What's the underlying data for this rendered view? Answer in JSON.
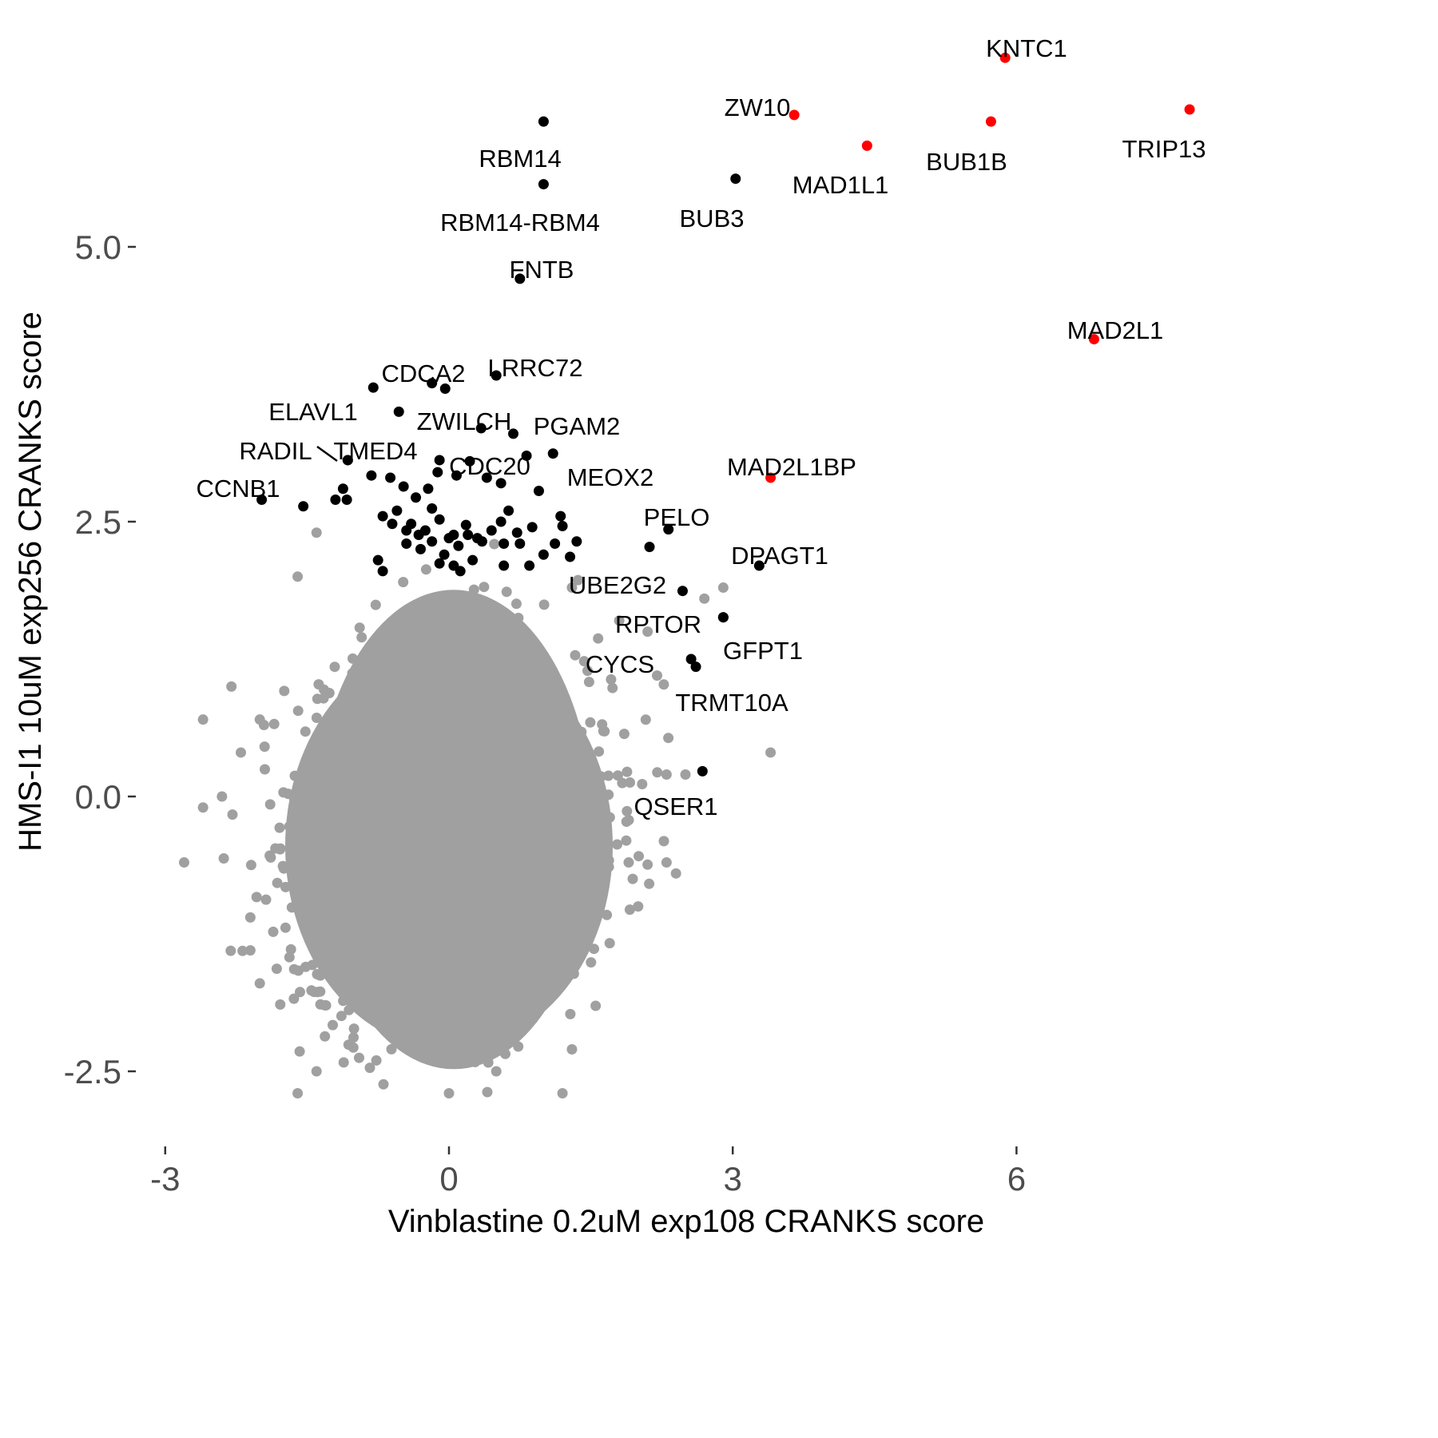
{
  "chart_data": {
    "type": "scatter",
    "title": "",
    "xlabel": "Vinblastine 0.2uM exp108 CRANKS score",
    "ylabel": "HMS-I1 10uM exp256 CRANKS score",
    "xlim": [
      -3.3,
      8.0
    ],
    "ylim": [
      -3.1,
      7.05
    ],
    "x_ticks": [
      -3,
      0,
      3,
      6
    ],
    "x_tick_labels": [
      "-3",
      "0",
      "3",
      "6"
    ],
    "y_ticks": [
      -2.5,
      0.0,
      2.5,
      5.0
    ],
    "y_tick_labels": [
      "-2.5",
      "0.0",
      "2.5",
      "5.0"
    ],
    "grid": false,
    "legend": "none",
    "colors": {
      "background": "#ffffff",
      "background_genes": "#a0a0a0",
      "highlight_black": "#000000",
      "highlight_red": "#ff0000",
      "tick_text": "#4d4d4d"
    },
    "background_cloud": {
      "description_type": "dense gray point cloud (thousands of genes)",
      "x_range": [
        -2.8,
        3.4
      ],
      "y_range": [
        -2.7,
        2.4
      ],
      "color": "#a0a0a0",
      "outliers": [
        [
          -2.8,
          -0.6
        ],
        [
          -2.6,
          0.7
        ],
        [
          -2.6,
          -0.1
        ],
        [
          -2.4,
          0.0
        ],
        [
          -2.3,
          1.0
        ],
        [
          -2.2,
          0.4
        ],
        [
          -2.1,
          -1.1
        ],
        [
          -2.1,
          -1.4
        ],
        [
          -2.0,
          -1.7
        ],
        [
          -2.0,
          0.7
        ],
        [
          -1.6,
          -2.7
        ],
        [
          -1.4,
          -2.5
        ],
        [
          -1.3,
          -1.9
        ],
        [
          -1.4,
          2.4
        ],
        [
          -1.6,
          2.0
        ],
        [
          1.2,
          -2.7
        ],
        [
          1.3,
          1.9
        ],
        [
          1.8,
          1.6
        ],
        [
          2.1,
          1.5
        ],
        [
          2.2,
          1.1
        ],
        [
          2.3,
          0.2
        ],
        [
          2.5,
          0.2
        ],
        [
          2.3,
          -0.6
        ],
        [
          2.4,
          -0.7
        ],
        [
          2.7,
          1.8
        ],
        [
          2.9,
          1.9
        ],
        [
          3.4,
          0.4
        ],
        [
          2.0,
          -1.0
        ],
        [
          1.9,
          -0.6
        ],
        [
          1.3,
          -2.3
        ],
        [
          0.5,
          -2.5
        ],
        [
          0.0,
          -2.7
        ]
      ]
    },
    "series": [
      {
        "name": "",
        "color": "#ff0000",
        "points": [
          {
            "label": "KNTC1",
            "x": 5.88,
            "y": 6.72
          },
          {
            "label": "ZW10",
            "x": 3.65,
            "y": 6.2
          },
          {
            "label": "TRIP13",
            "x": 7.83,
            "y": 6.25
          },
          {
            "label": "BUB1B",
            "x": 5.73,
            "y": 6.14
          },
          {
            "label": "MAD1L1",
            "x": 4.42,
            "y": 5.92
          },
          {
            "label": "MAD2L1",
            "x": 6.82,
            "y": 4.16
          },
          {
            "label": "MAD2L1BP",
            "x": 3.4,
            "y": 2.9
          }
        ]
      },
      {
        "name": "",
        "color": "#000000",
        "points": [
          {
            "label": "RBM14",
            "x": 1.0,
            "y": 6.14
          },
          {
            "label": "RBM14-RBM4",
            "x": 1.0,
            "y": 5.57
          },
          {
            "label": "BUB3",
            "x": 3.03,
            "y": 5.62
          },
          {
            "label": "FNTB",
            "x": 0.75,
            "y": 4.71
          },
          {
            "label": "LRRC72",
            "x": 0.5,
            "y": 3.83
          },
          {
            "label": "CDCA2",
            "x": -0.18,
            "y": 3.76
          },
          {
            "label": "",
            "x": -0.04,
            "y": 3.71
          },
          {
            "label": "ELAVL1",
            "x": -0.8,
            "y": 3.72
          },
          {
            "label": "ZWILCH",
            "x": -0.53,
            "y": 3.5
          },
          {
            "label": "",
            "x": 0.34,
            "y": 3.35
          },
          {
            "label": "PGAM2",
            "x": 0.68,
            "y": 3.3
          },
          {
            "label": "RADIL",
            "x": -1.07,
            "y": 3.06
          },
          {
            "label": "TMED4",
            "x": -1.07,
            "y": 3.06
          },
          {
            "label": "CDC20",
            "x": 0.82,
            "y": 3.1
          },
          {
            "label": "MEOX2",
            "x": 1.1,
            "y": 3.12
          },
          {
            "label": "CCNB1",
            "x": -1.98,
            "y": 2.7
          },
          {
            "label": "PELO",
            "x": 2.32,
            "y": 2.43
          },
          {
            "label": "DPAGT1",
            "x": 3.28,
            "y": 2.1
          },
          {
            "label": "UBE2G2",
            "x": 2.47,
            "y": 1.87
          },
          {
            "label": "RPTOR",
            "x": 2.9,
            "y": 1.63
          },
          {
            "label": "GFPT1",
            "x": 2.9,
            "y": 1.63
          },
          {
            "label": "CYCS",
            "x": 2.56,
            "y": 1.25
          },
          {
            "label": "TRMT10A",
            "x": 2.61,
            "y": 1.18
          },
          {
            "label": "QSER1",
            "x": 2.68,
            "y": 0.23
          },
          {
            "label": "",
            "x": 2.12,
            "y": 2.27
          },
          {
            "label": "",
            "x": -1.54,
            "y": 2.64
          },
          {
            "label": "",
            "x": -1.2,
            "y": 2.7
          },
          {
            "label": "",
            "x": -1.12,
            "y": 2.8
          },
          {
            "label": "",
            "x": -1.08,
            "y": 2.7
          },
          {
            "label": "",
            "x": -0.82,
            "y": 2.92
          },
          {
            "label": "",
            "x": -0.62,
            "y": 2.9
          },
          {
            "label": "",
            "x": -0.48,
            "y": 2.82
          },
          {
            "label": "",
            "x": -0.35,
            "y": 2.72
          },
          {
            "label": "",
            "x": -0.18,
            "y": 2.62
          },
          {
            "label": "",
            "x": -0.22,
            "y": 2.8
          },
          {
            "label": "",
            "x": -0.12,
            "y": 2.95
          },
          {
            "label": "",
            "x": -0.1,
            "y": 3.06
          },
          {
            "label": "",
            "x": 0.08,
            "y": 2.92
          },
          {
            "label": "",
            "x": 0.22,
            "y": 3.05
          },
          {
            "label": "",
            "x": 0.4,
            "y": 2.9
          },
          {
            "label": "",
            "x": 0.55,
            "y": 2.85
          },
          {
            "label": "",
            "x": 0.63,
            "y": 2.6
          },
          {
            "label": "",
            "x": 0.95,
            "y": 2.78
          },
          {
            "label": "",
            "x": -0.7,
            "y": 2.55
          },
          {
            "label": "",
            "x": -0.55,
            "y": 2.6
          },
          {
            "label": "",
            "x": -0.4,
            "y": 2.48
          },
          {
            "label": "",
            "x": -0.25,
            "y": 2.42
          },
          {
            "label": "",
            "x": -0.1,
            "y": 2.52
          },
          {
            "label": "",
            "x": 0.05,
            "y": 2.38
          },
          {
            "label": "",
            "x": 0.18,
            "y": 2.47
          },
          {
            "label": "",
            "x": 0.3,
            "y": 2.35
          },
          {
            "label": "",
            "x": 0.45,
            "y": 2.42
          },
          {
            "label": "",
            "x": 0.58,
            "y": 2.3
          },
          {
            "label": "",
            "x": 0.72,
            "y": 2.4
          },
          {
            "label": "",
            "x": 0.88,
            "y": 2.45
          },
          {
            "label": "",
            "x": -0.6,
            "y": 2.48
          },
          {
            "label": "",
            "x": -0.45,
            "y": 2.3
          },
          {
            "label": "",
            "x": -0.32,
            "y": 2.38
          },
          {
            "label": "",
            "x": -0.18,
            "y": 2.32
          },
          {
            "label": "",
            "x": -0.05,
            "y": 2.2
          },
          {
            "label": "",
            "x": 0.1,
            "y": 2.28
          },
          {
            "label": "",
            "x": 0.25,
            "y": 2.15
          },
          {
            "label": "",
            "x": 0.35,
            "y": 2.32
          },
          {
            "label": "",
            "x": 0.55,
            "y": 2.5
          },
          {
            "label": "",
            "x": 0.75,
            "y": 2.3
          },
          {
            "label": "",
            "x": 0.85,
            "y": 2.1
          },
          {
            "label": "",
            "x": 1.0,
            "y": 2.2
          },
          {
            "label": "",
            "x": 1.12,
            "y": 2.3
          },
          {
            "label": "",
            "x": 1.18,
            "y": 2.55
          },
          {
            "label": "",
            "x": 1.2,
            "y": 2.46
          },
          {
            "label": "",
            "x": 1.28,
            "y": 2.18
          },
          {
            "label": "",
            "x": 1.35,
            "y": 2.32
          },
          {
            "label": "",
            "x": -0.75,
            "y": 2.15
          },
          {
            "label": "",
            "x": -0.7,
            "y": 2.05
          },
          {
            "label": "",
            "x": -0.3,
            "y": 2.25
          },
          {
            "label": "",
            "x": -0.1,
            "y": 2.12
          },
          {
            "label": "",
            "x": 0.05,
            "y": 2.1
          },
          {
            "label": "",
            "x": 0.12,
            "y": 2.05
          },
          {
            "label": "",
            "x": 0.58,
            "y": 2.1
          },
          {
            "label": "",
            "x": -0.45,
            "y": 2.42
          },
          {
            "label": "",
            "x": 0.2,
            "y": 2.38
          },
          {
            "label": "",
            "x": 0.0,
            "y": 2.35
          }
        ]
      }
    ],
    "annotations": [
      {
        "text": "KNTC1"
      },
      {
        "text": "ZW10"
      },
      {
        "text": "RBM14"
      },
      {
        "text": "TRIP13"
      },
      {
        "text": "BUB1B"
      },
      {
        "text": "MAD1L1"
      },
      {
        "text": "RBM14-RBM4"
      },
      {
        "text": "BUB3"
      },
      {
        "text": "FNTB"
      },
      {
        "text": "MAD2L1"
      },
      {
        "text": "CDCA2"
      },
      {
        "text": "LRRC72"
      },
      {
        "text": "ELAVL1"
      },
      {
        "text": "ZWILCH"
      },
      {
        "text": "PGAM2"
      },
      {
        "text": "RADIL"
      },
      {
        "text": "TMED4"
      },
      {
        "text": "CDC20"
      },
      {
        "text": "MAD2L1BP"
      },
      {
        "text": "MEOX2"
      },
      {
        "text": "CCNB1"
      },
      {
        "text": "PELO"
      },
      {
        "text": "DPAGT1"
      },
      {
        "text": "UBE2G2"
      },
      {
        "text": "RPTOR"
      },
      {
        "text": "GFPT1"
      },
      {
        "text": "CYCS"
      },
      {
        "text": "TRMT10A"
      },
      {
        "text": "QSER1"
      }
    ]
  }
}
